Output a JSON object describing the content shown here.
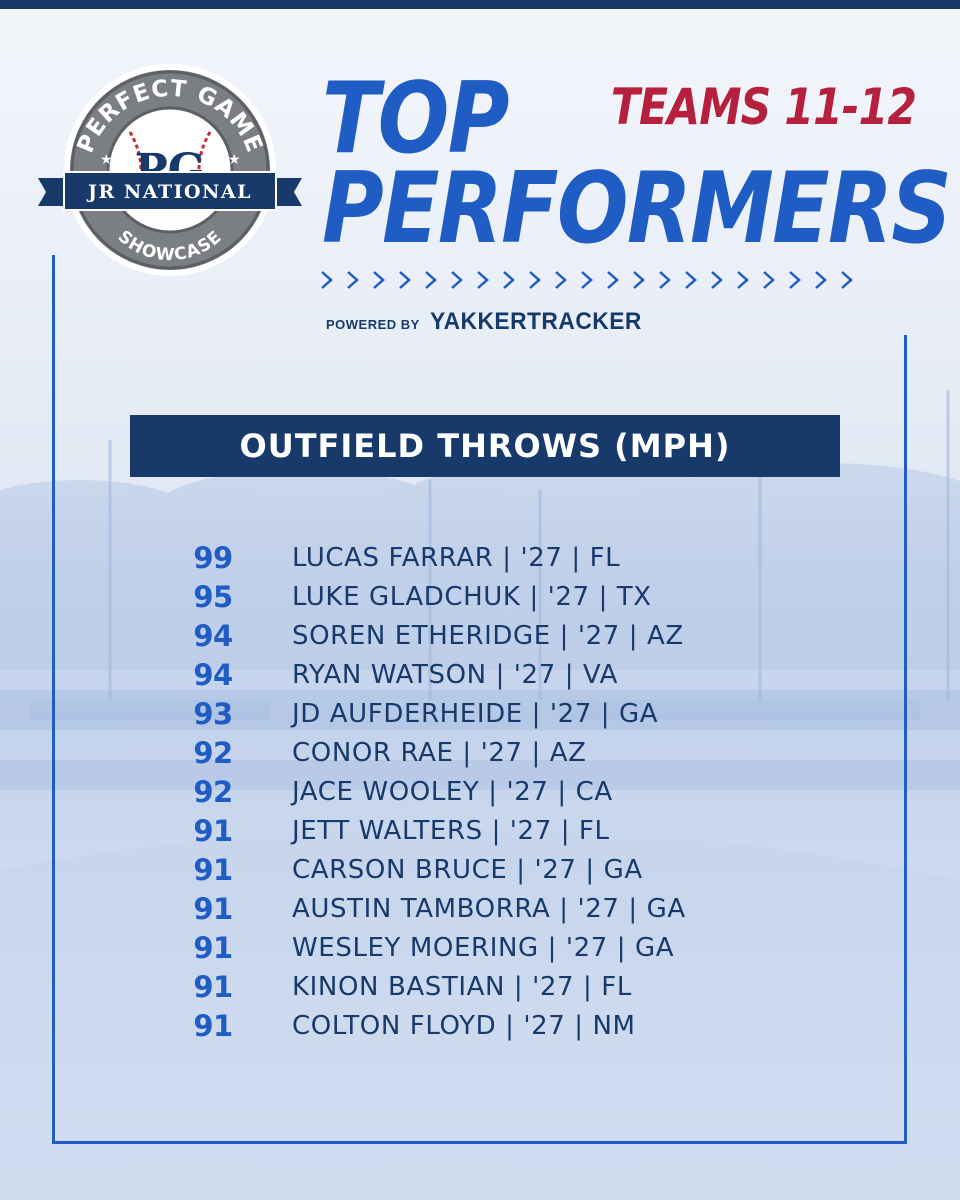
{
  "logo": {
    "top_text": "PERFECT GAME",
    "middle_text": "JR NATIONAL",
    "bottom_text": "SHOWCASE",
    "monogram": "PG"
  },
  "header": {
    "title_line1": "TOP",
    "title_line2": "PERFORMERS",
    "subtitle": "TEAMS 11-12",
    "powered_by": "POWERED BY",
    "sponsor": "YAKKERTRACKER"
  },
  "category": "OUTFIELD THROWS (MPH)",
  "performers": [
    {
      "value": "99",
      "player": "LUCAS FARRAR | '27 | FL"
    },
    {
      "value": "95",
      "player": "LUKE GLADCHUK | '27 | TX"
    },
    {
      "value": "94",
      "player": "SOREN ETHERIDGE | '27 | AZ"
    },
    {
      "value": "94",
      "player": "RYAN WATSON | '27 | VA"
    },
    {
      "value": "93",
      "player": "JD AUFDERHEIDE | '27 | GA"
    },
    {
      "value": "92",
      "player": "CONOR RAE | '27 | AZ"
    },
    {
      "value": "92",
      "player": "JACE WOOLEY | '27 | CA"
    },
    {
      "value": "91",
      "player": "JETT WALTERS | '27 | FL"
    },
    {
      "value": "91",
      "player": "CARSON BRUCE | '27 | GA"
    },
    {
      "value": "91",
      "player": "AUSTIN TAMBORRA | '27 | GA"
    },
    {
      "value": "91",
      "player": "WESLEY MOERING | '27 | GA"
    },
    {
      "value": "91",
      "player": "KINON BASTIAN | '27 | FL"
    },
    {
      "value": "91",
      "player": "COLTON FLOYD | '27 | NM"
    }
  ],
  "colors": {
    "primary_blue": "#1f5cc4",
    "navy": "#173a6b",
    "accent_red": "#b5203c"
  }
}
